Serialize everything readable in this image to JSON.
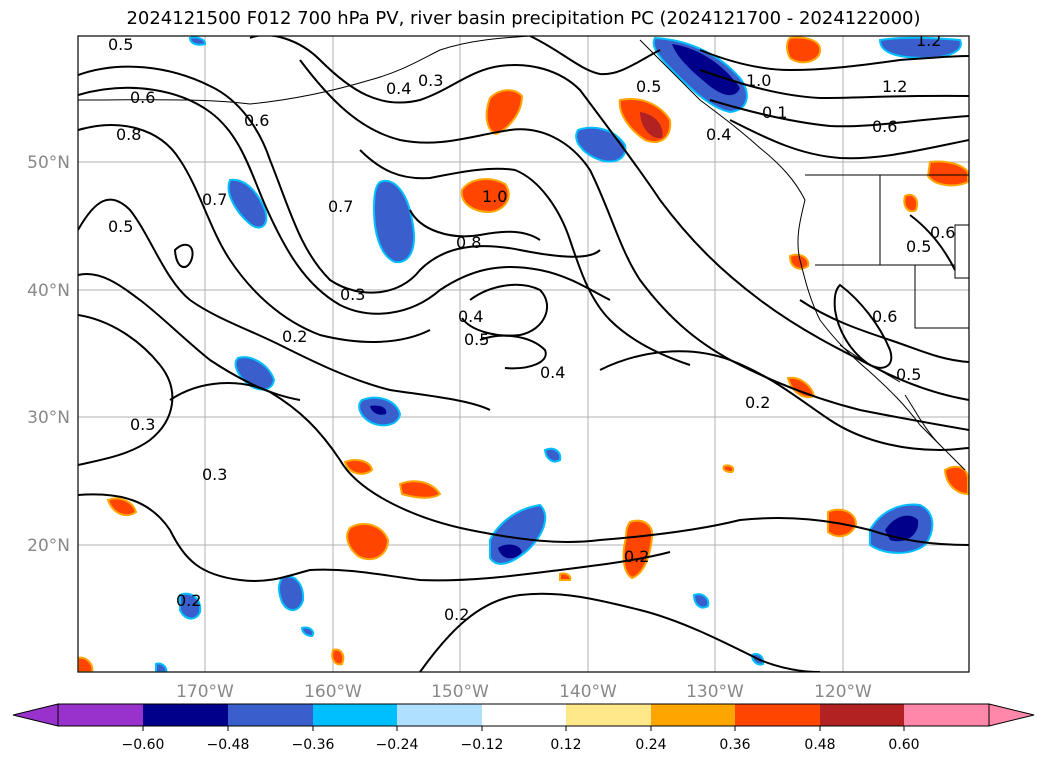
{
  "title": "2024121500 F012 700 hPa PV, river basin precipitation PC (2024121700 - 2024122000)",
  "map": {
    "lat_labels": [
      "50°N",
      "40°N",
      "30°N",
      "20°N"
    ],
    "lon_labels": [
      "170°W",
      "160°W",
      "150°W",
      "140°W",
      "130°W",
      "120°W"
    ]
  },
  "contour_labels": [
    "0.5",
    "0.6",
    "0.8",
    "0.7",
    "0.5",
    "0.6",
    "0.7",
    "0.4",
    "0.3",
    "1.0",
    "0.8",
    "0.3",
    "0.4",
    "0.5",
    "0.2",
    "0.3",
    "0.3",
    "0.2",
    "0.4",
    "0.2",
    "0.2",
    "0.5",
    "1.0",
    "0.4",
    "1.2",
    "1.2",
    "0.6",
    "0.6",
    "0.5",
    "0.6",
    "0.5",
    "0.2",
    "0.1"
  ],
  "colorbar": {
    "colors": [
      "#9932cc",
      "#00008b",
      "#3a5fcd",
      "#00bfff",
      "#b0e0ff",
      "#ffffff",
      "#ffe88a",
      "#ffa500",
      "#ff4500",
      "#b22222",
      "#ff88aa"
    ],
    "ticks": [
      "−0.60",
      "−0.48",
      "−0.36",
      "−0.24",
      "−0.12",
      "0.12",
      "0.24",
      "0.36",
      "0.48",
      "0.60"
    ]
  }
}
